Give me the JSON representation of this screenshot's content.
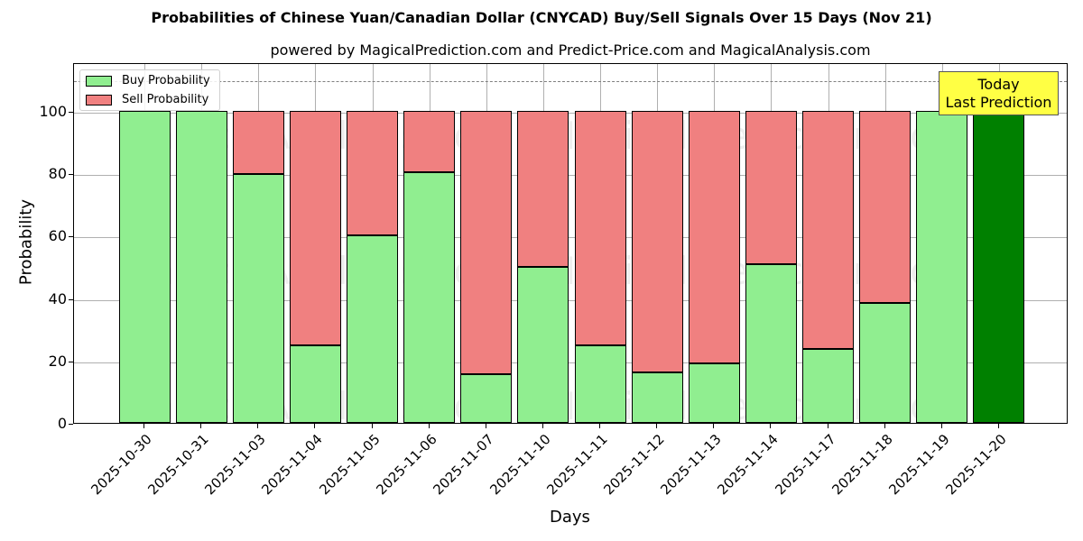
{
  "header": {
    "title": "Probabilities of Chinese Yuan/Canadian Dollar (CNYCAD) Buy/Sell Signals Over 15 Days (Nov 21)",
    "subtitle": "powered by MagicalPrediction.com and Predict-Price.com and MagicalAnalysis.com"
  },
  "legend": {
    "buy_label": "Buy Probability",
    "sell_label": "Sell Probability"
  },
  "annotation": {
    "line1": "Today",
    "line2": "Last Prediction"
  },
  "watermarks": [
    "MagicalAnalysis.com",
    "MagicalPrediction.com"
  ],
  "colors": {
    "buy": "#90ee90",
    "sell": "#f08080",
    "today": "#008000",
    "annotation_bg": "#ffff44"
  },
  "chart_data": {
    "type": "bar",
    "stacked": true,
    "title": "Probabilities of Chinese Yuan/Canadian Dollar (CNYCAD) Buy/Sell Signals Over 15 Days (Nov 21)",
    "subtitle": "powered by MagicalPrediction.com and Predict-Price.com and MagicalAnalysis.com",
    "xlabel": "Days",
    "ylabel": "Probability",
    "ylim": [
      0,
      115
    ],
    "yticks": [
      0,
      20,
      40,
      60,
      80,
      100
    ],
    "threshold_line": 110,
    "grid": true,
    "legend_position": "upper left",
    "categories": [
      "2025-10-30",
      "2025-10-31",
      "2025-11-03",
      "2025-11-04",
      "2025-11-05",
      "2025-11-06",
      "2025-11-07",
      "2025-11-10",
      "2025-11-11",
      "2025-11-12",
      "2025-11-13",
      "2025-11-14",
      "2025-11-17",
      "2025-11-18",
      "2025-11-19",
      "2025-11-20"
    ],
    "series": [
      {
        "name": "Buy Probability",
        "values": [
          100,
          100,
          79.7,
          24.9,
          60.0,
          80.3,
          15.6,
          50.0,
          24.9,
          16.2,
          19.1,
          50.9,
          23.7,
          38.4,
          100,
          100
        ]
      },
      {
        "name": "Sell Probability",
        "values": [
          0,
          0,
          20.3,
          75.1,
          40.0,
          19.7,
          84.4,
          50.0,
          75.1,
          83.8,
          80.9,
          49.1,
          76.3,
          61.6,
          0,
          0
        ]
      }
    ],
    "annotations": [
      {
        "text": "Today\nLast Prediction",
        "category": "2025-11-20"
      }
    ],
    "highlight_last_bar_color": "#008000"
  },
  "axis": {
    "yticks": [
      "0",
      "20",
      "40",
      "60",
      "80",
      "100"
    ],
    "xlabel": "Days",
    "ylabel": "Probability"
  }
}
